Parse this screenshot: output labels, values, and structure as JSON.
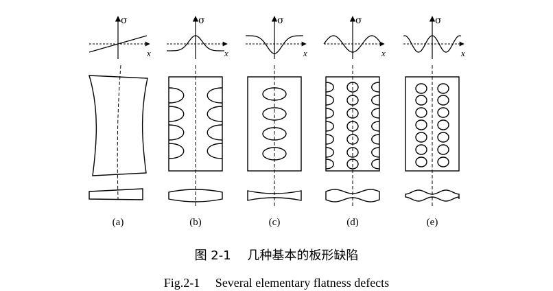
{
  "axes": {
    "y_symbol": "σ",
    "x_symbol": "x"
  },
  "panels": [
    {
      "id": "a",
      "label": "(a)",
      "stress_profile": "linear",
      "defect": "camber"
    },
    {
      "id": "b",
      "label": "(b)",
      "stress_profile": "center-peak",
      "defect": "edge-wave"
    },
    {
      "id": "c",
      "label": "(c)",
      "stress_profile": "center-trough",
      "defect": "center-buckle"
    },
    {
      "id": "d",
      "label": "(d)",
      "stress_profile": "two-peaks",
      "defect": "quarter-buckle-with-edge-wave"
    },
    {
      "id": "e",
      "label": "(e)",
      "stress_profile": "three-peaks",
      "defect": "double-quarter-buckle"
    }
  ],
  "caption": {
    "cn": "图 2-1　 几种基本的板形缺陷",
    "en": "Fig.2-1　 Several elementary flatness defects"
  }
}
